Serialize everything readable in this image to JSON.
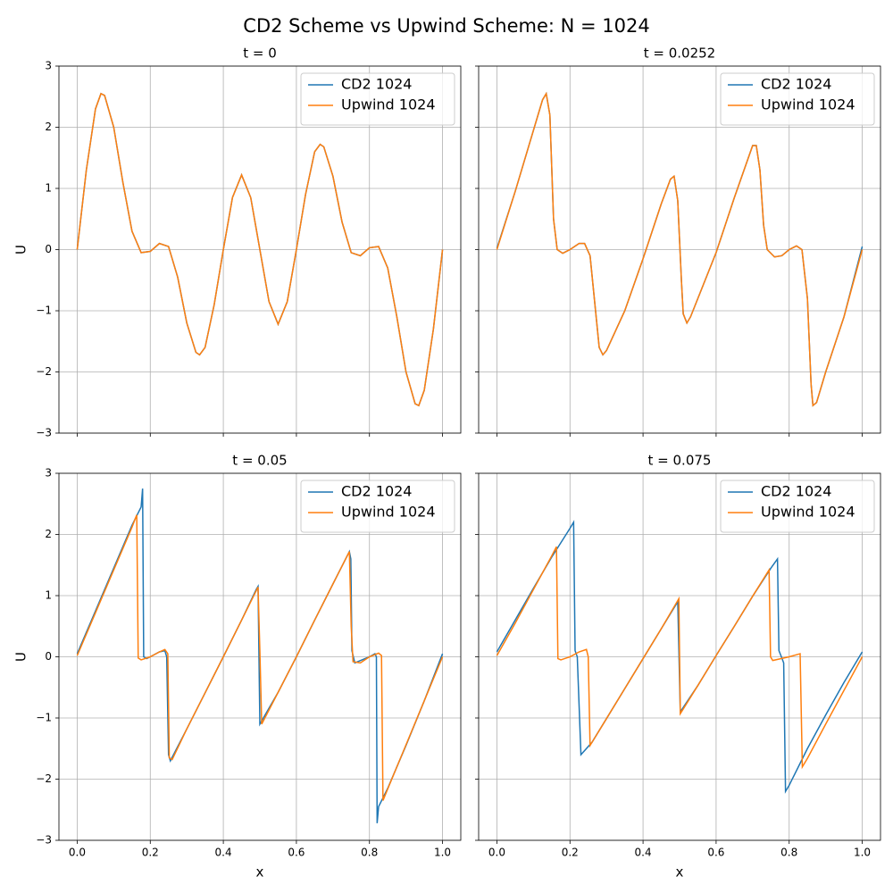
{
  "title": "CD2 Scheme vs Upwind Scheme: N = 1024",
  "chart_data": [
    {
      "type": "line",
      "title": "t = 0",
      "ylabel": "U",
      "grid": true,
      "legend": "upper right",
      "xlim": [
        -0.05,
        1.05
      ],
      "ylim": [
        -3,
        3
      ],
      "xticks": [
        0,
        0.2,
        0.4,
        0.6,
        0.8,
        1
      ],
      "yticks": [
        {
          "value": -3,
          "label": "−3"
        },
        {
          "value": -2,
          "label": "−2"
        },
        {
          "value": -1,
          "label": "−1"
        },
        0,
        1,
        2,
        3
      ],
      "series": [
        {
          "name": "CD2 1024",
          "color": "#1f77b4",
          "x": [
            0,
            0.025,
            0.05,
            0.065,
            0.075,
            0.1,
            0.125,
            0.15,
            0.175,
            0.2,
            0.225,
            0.25,
            0.275,
            0.3,
            0.325,
            0.335,
            0.35,
            0.375,
            0.4,
            0.425,
            0.45,
            0.475,
            0.5,
            0.525,
            0.55,
            0.575,
            0.6,
            0.625,
            0.65,
            0.665,
            0.675,
            0.7,
            0.725,
            0.75,
            0.775,
            0.8,
            0.825,
            0.85,
            0.875,
            0.9,
            0.925,
            0.935,
            0.95,
            0.975,
            1.0
          ],
          "values": [
            0,
            1.3,
            2.3,
            2.55,
            2.52,
            2.0,
            1.1,
            0.3,
            -0.05,
            -0.03,
            0.1,
            0.05,
            -0.45,
            -1.2,
            -1.68,
            -1.72,
            -1.6,
            -0.9,
            0.0,
            0.85,
            1.22,
            0.85,
            0,
            -0.85,
            -1.22,
            -0.85,
            0,
            0.9,
            1.6,
            1.72,
            1.68,
            1.2,
            0.45,
            -0.05,
            -0.1,
            0.03,
            0.05,
            -0.3,
            -1.1,
            -2.0,
            -2.52,
            -2.55,
            -2.3,
            -1.3,
            0
          ]
        },
        {
          "name": "Upwind 1024",
          "color": "#ff7f0e",
          "x": [
            0,
            0.025,
            0.05,
            0.065,
            0.075,
            0.1,
            0.125,
            0.15,
            0.175,
            0.2,
            0.225,
            0.25,
            0.275,
            0.3,
            0.325,
            0.335,
            0.35,
            0.375,
            0.4,
            0.425,
            0.45,
            0.475,
            0.5,
            0.525,
            0.55,
            0.575,
            0.6,
            0.625,
            0.65,
            0.665,
            0.675,
            0.7,
            0.725,
            0.75,
            0.775,
            0.8,
            0.825,
            0.85,
            0.875,
            0.9,
            0.925,
            0.935,
            0.95,
            0.975,
            1.0
          ],
          "values": [
            0,
            1.3,
            2.3,
            2.55,
            2.52,
            2.0,
            1.1,
            0.3,
            -0.05,
            -0.03,
            0.1,
            0.05,
            -0.45,
            -1.2,
            -1.68,
            -1.72,
            -1.6,
            -0.9,
            0.0,
            0.85,
            1.22,
            0.85,
            0,
            -0.85,
            -1.22,
            -0.85,
            0,
            0.9,
            1.6,
            1.72,
            1.68,
            1.2,
            0.45,
            -0.05,
            -0.1,
            0.03,
            0.05,
            -0.3,
            -1.1,
            -2.0,
            -2.52,
            -2.55,
            -2.3,
            -1.3,
            0
          ]
        }
      ]
    },
    {
      "type": "line",
      "title": "t = 0.0252",
      "grid": true,
      "legend": "upper right",
      "xlim": [
        -0.05,
        1.05
      ],
      "ylim": [
        -3,
        3
      ],
      "xticks": [
        0,
        0.2,
        0.4,
        0.6,
        0.8,
        1
      ],
      "yticks": [
        -3,
        -2,
        -1,
        0,
        1,
        2,
        3
      ],
      "series": [
        {
          "name": "CD2 1024",
          "color": "#1f77b4",
          "x": [
            0,
            0.05,
            0.1,
            0.125,
            0.135,
            0.145,
            0.155,
            0.165,
            0.18,
            0.2,
            0.225,
            0.24,
            0.255,
            0.27,
            0.28,
            0.29,
            0.3,
            0.35,
            0.4,
            0.45,
            0.475,
            0.485,
            0.495,
            0.505,
            0.51,
            0.52,
            0.53,
            0.6,
            0.65,
            0.7,
            0.71,
            0.72,
            0.73,
            0.74,
            0.76,
            0.78,
            0.8,
            0.82,
            0.835,
            0.85,
            0.86,
            0.865,
            0.875,
            0.9,
            0.95,
            1.0
          ],
          "values": [
            0.02,
            0.95,
            1.95,
            2.45,
            2.55,
            2.2,
            0.5,
            0.0,
            -0.06,
            0.0,
            0.1,
            0.1,
            -0.1,
            -1.0,
            -1.6,
            -1.72,
            -1.65,
            -1.0,
            -0.15,
            0.75,
            1.15,
            1.2,
            0.8,
            -0.5,
            -1.05,
            -1.2,
            -1.1,
            -0.05,
            0.85,
            1.7,
            1.7,
            1.3,
            0.4,
            0.0,
            -0.12,
            -0.1,
            0.0,
            0.06,
            0.0,
            -0.8,
            -2.2,
            -2.55,
            -2.5,
            -2.0,
            -1.1,
            0.05
          ]
        },
        {
          "name": "Upwind 1024",
          "color": "#ff7f0e",
          "x": [
            0,
            0.05,
            0.1,
            0.125,
            0.135,
            0.145,
            0.155,
            0.165,
            0.18,
            0.2,
            0.225,
            0.24,
            0.255,
            0.27,
            0.28,
            0.29,
            0.3,
            0.35,
            0.4,
            0.45,
            0.475,
            0.485,
            0.495,
            0.505,
            0.51,
            0.52,
            0.53,
            0.6,
            0.65,
            0.7,
            0.71,
            0.72,
            0.73,
            0.74,
            0.76,
            0.78,
            0.8,
            0.82,
            0.835,
            0.85,
            0.86,
            0.865,
            0.875,
            0.9,
            0.95,
            1.0
          ],
          "values": [
            0.0,
            0.95,
            1.95,
            2.45,
            2.55,
            2.2,
            0.5,
            0.0,
            -0.06,
            0.0,
            0.1,
            0.1,
            -0.1,
            -1.0,
            -1.6,
            -1.72,
            -1.65,
            -1.0,
            -0.15,
            0.75,
            1.15,
            1.2,
            0.8,
            -0.5,
            -1.05,
            -1.2,
            -1.1,
            -0.05,
            0.85,
            1.7,
            1.7,
            1.3,
            0.4,
            0.0,
            -0.12,
            -0.1,
            0.0,
            0.06,
            0.0,
            -0.8,
            -2.2,
            -2.55,
            -2.5,
            -2.0,
            -1.1,
            0.0
          ]
        }
      ]
    },
    {
      "type": "line",
      "title": "t = 0.05",
      "xlabel": "x",
      "ylabel": "U",
      "grid": true,
      "legend": "upper right",
      "xlim": [
        -0.05,
        1.05
      ],
      "ylim": [
        -3,
        3
      ],
      "xticks": [
        {
          "value": 0,
          "label": "0.0"
        },
        0.2,
        0.4,
        0.6,
        0.8,
        {
          "value": 1,
          "label": "1.0"
        }
      ],
      "yticks": [
        {
          "value": -3,
          "label": "−3"
        },
        {
          "value": -2,
          "label": "−2"
        },
        {
          "value": -1,
          "label": "−1"
        },
        0,
        1,
        2,
        3
      ],
      "series": [
        {
          "name": "CD2 1024",
          "color": "#1f77b4",
          "x": [
            0,
            0.05,
            0.1,
            0.15,
            0.175,
            0.179,
            0.182,
            0.19,
            0.2,
            0.225,
            0.24,
            0.245,
            0.25,
            0.255,
            0.3,
            0.35,
            0.4,
            0.45,
            0.49,
            0.495,
            0.5,
            0.55,
            0.6,
            0.65,
            0.7,
            0.745,
            0.749,
            0.752,
            0.76,
            0.8,
            0.815,
            0.819,
            0.821,
            0.825,
            0.85,
            0.9,
            0.95,
            1.0
          ],
          "values": [
            0.05,
            0.75,
            1.45,
            2.15,
            2.45,
            2.75,
            0.0,
            -0.03,
            0.0,
            0.08,
            0.1,
            0.0,
            -1.6,
            -1.7,
            -1.18,
            -0.59,
            0.0,
            0.6,
            1.1,
            1.15,
            -1.1,
            -0.58,
            0.0,
            0.6,
            1.19,
            1.72,
            1.6,
            0.1,
            -0.1,
            0.0,
            0.05,
            0.0,
            -2.72,
            -2.45,
            -2.15,
            -1.45,
            -0.72,
            0.05
          ]
        },
        {
          "name": "Upwind 1024",
          "color": "#ff7f0e",
          "x": [
            0,
            0.05,
            0.1,
            0.15,
            0.163,
            0.167,
            0.175,
            0.2,
            0.225,
            0.24,
            0.248,
            0.252,
            0.26,
            0.3,
            0.35,
            0.4,
            0.45,
            0.495,
            0.5,
            0.505,
            0.55,
            0.6,
            0.65,
            0.7,
            0.745,
            0.75,
            0.755,
            0.775,
            0.8,
            0.825,
            0.833,
            0.837,
            0.85,
            0.9,
            0.95,
            1.0
          ],
          "values": [
            0.02,
            0.72,
            1.42,
            2.12,
            2.32,
            -0.02,
            -0.05,
            0.0,
            0.08,
            0.12,
            0.05,
            -1.65,
            -1.68,
            -1.18,
            -0.59,
            0.0,
            0.6,
            1.14,
            0.1,
            -1.1,
            -0.58,
            0.0,
            0.6,
            1.19,
            1.72,
            0.5,
            -0.08,
            -0.1,
            0.0,
            0.06,
            0.02,
            -2.35,
            -2.16,
            -1.44,
            -0.72,
            0.0
          ]
        }
      ]
    },
    {
      "type": "line",
      "title": "t = 0.075",
      "xlabel": "x",
      "grid": true,
      "legend": "upper right",
      "xlim": [
        -0.05,
        1.05
      ],
      "ylim": [
        -3,
        3
      ],
      "xticks": [
        {
          "value": 0,
          "label": "0.0"
        },
        0.2,
        0.4,
        0.6,
        0.8,
        {
          "value": 1,
          "label": "1.0"
        }
      ],
      "yticks": [
        -3,
        -2,
        -1,
        0,
        1,
        2,
        3
      ],
      "series": [
        {
          "name": "CD2 1024",
          "color": "#1f77b4",
          "x": [
            0,
            0.05,
            0.1,
            0.15,
            0.2,
            0.21,
            0.214,
            0.22,
            0.23,
            0.26,
            0.3,
            0.35,
            0.4,
            0.45,
            0.495,
            0.502,
            0.55,
            0.6,
            0.65,
            0.7,
            0.75,
            0.768,
            0.772,
            0.78,
            0.785,
            0.79,
            0.8,
            0.85,
            0.9,
            0.95,
            1.0
          ],
          "values": [
            0.08,
            0.6,
            1.12,
            1.63,
            2.1,
            2.2,
            0.1,
            0.0,
            -1.6,
            -1.4,
            -1.01,
            -0.52,
            -0.03,
            0.46,
            0.9,
            -0.9,
            -0.47,
            0.02,
            0.5,
            0.99,
            1.45,
            1.6,
            0.1,
            -0.02,
            -0.1,
            -2.2,
            -2.1,
            -1.5,
            -0.95,
            -0.42,
            0.08
          ]
        },
        {
          "name": "Upwind 1024",
          "color": "#ff7f0e",
          "x": [
            0,
            0.05,
            0.1,
            0.15,
            0.163,
            0.167,
            0.175,
            0.2,
            0.225,
            0.245,
            0.25,
            0.255,
            0.3,
            0.35,
            0.4,
            0.45,
            0.498,
            0.502,
            0.55,
            0.6,
            0.65,
            0.7,
            0.745,
            0.749,
            0.755,
            0.8,
            0.83,
            0.836,
            0.85,
            0.9,
            0.95,
            1.0
          ],
          "values": [
            0.02,
            0.55,
            1.1,
            1.65,
            1.8,
            -0.03,
            -0.05,
            0.0,
            0.08,
            0.12,
            0.0,
            -1.45,
            -1.01,
            -0.52,
            -0.03,
            0.46,
            0.95,
            -0.93,
            -0.47,
            0.02,
            0.5,
            0.99,
            1.42,
            0.0,
            -0.06,
            0.0,
            0.05,
            -1.8,
            -1.66,
            -1.1,
            -0.55,
            0.0
          ]
        }
      ]
    }
  ]
}
